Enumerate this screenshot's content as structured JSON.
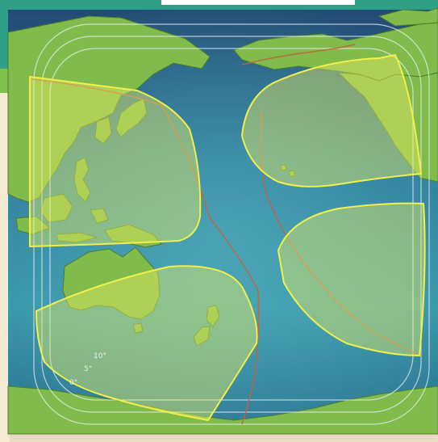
{
  "map": {
    "colors": {
      "ocean_dark": "#1f4f7a",
      "ocean_light": "#4aa6b8",
      "land": "#7fba4a",
      "land_shadow": "#4d7d2c",
      "beam_fill": "#e7ea63",
      "beam_stroke": "#f1f04a",
      "boundary_line": "#c5633a",
      "contour_line": "#e6eef2",
      "top_header": "#ffffff",
      "side_panel": "#f5ead3"
    },
    "contour_labels": [
      "10°",
      "5°",
      "0°"
    ],
    "spot_beams": [
      "northwest-beam",
      "northeast-beam",
      "southwest-beam",
      "southeast-beam"
    ]
  }
}
